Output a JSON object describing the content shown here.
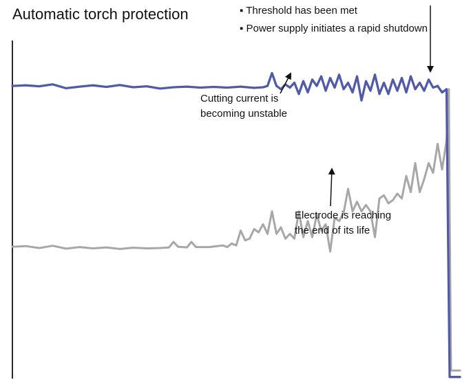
{
  "title": "Automatic torch protection",
  "threshold_notes": [
    "▪ Threshold has been met",
    "▪ Power supply initiates a rapid shutdown"
  ],
  "annotations": {
    "cutting_current": [
      "Cutting current is",
      "becoming unstable"
    ],
    "electrode": [
      "Electrode is reaching",
      "the end of its life"
    ]
  },
  "colors": {
    "cutting_current": "#4f5aa8",
    "electrode_signal": "#a7a7a7",
    "axis": "#111111"
  },
  "chart_data": {
    "type": "line",
    "title": "Automatic torch protection",
    "xlabel": "",
    "ylabel": "",
    "x_range": [
      0,
      100
    ],
    "y_range": [
      0,
      100
    ],
    "grid": false,
    "legend": "none",
    "series": [
      {
        "id": "cutting_current",
        "color": "#4f5aa8",
        "points": [
          [
            0,
            91.0
          ],
          [
            3,
            91.2
          ],
          [
            6,
            90.9
          ],
          [
            9,
            91.5
          ],
          [
            12,
            90.3
          ],
          [
            15,
            90.8
          ],
          [
            18,
            91.2
          ],
          [
            21,
            90.7
          ],
          [
            24,
            91.3
          ],
          [
            27,
            90.6
          ],
          [
            30,
            90.9
          ],
          [
            33,
            90.2
          ],
          [
            36,
            90.6
          ],
          [
            39,
            90.8
          ],
          [
            42,
            90.5
          ],
          [
            45,
            90.7
          ],
          [
            48,
            90.5
          ],
          [
            51,
            90.8
          ],
          [
            54,
            90.4
          ],
          [
            56,
            90.6
          ],
          [
            57,
            91.0
          ],
          [
            58,
            95.0
          ],
          [
            59,
            91.0
          ],
          [
            60,
            90.0
          ],
          [
            61,
            91.5
          ],
          [
            62,
            90.5
          ],
          [
            63,
            92.0
          ],
          [
            64,
            88.5
          ],
          [
            65,
            92.5
          ],
          [
            66,
            89.0
          ],
          [
            67,
            93.0
          ],
          [
            68,
            91.0
          ],
          [
            69,
            94.0
          ],
          [
            70,
            89.5
          ],
          [
            71,
            93.5
          ],
          [
            72,
            90.5
          ],
          [
            73,
            94.5
          ],
          [
            74,
            90.0
          ],
          [
            75,
            92.0
          ],
          [
            76,
            89.0
          ],
          [
            77,
            94.0
          ],
          [
            78,
            86.5
          ],
          [
            79,
            92.5
          ],
          [
            80,
            89.5
          ],
          [
            81,
            94.5
          ],
          [
            82,
            88.5
          ],
          [
            83,
            92.0
          ],
          [
            84,
            88.5
          ],
          [
            85,
            93.0
          ],
          [
            86,
            89.5
          ],
          [
            87,
            93.5
          ],
          [
            88,
            89.0
          ],
          [
            89,
            94.0
          ],
          [
            90,
            90.0
          ],
          [
            91,
            92.0
          ],
          [
            92,
            89.5
          ],
          [
            93,
            93.0
          ],
          [
            94,
            90.5
          ],
          [
            95,
            91.0
          ],
          [
            96,
            89.0
          ],
          [
            97,
            90.0
          ],
          [
            97.3,
            50.0
          ],
          [
            97.7,
            0.5
          ],
          [
            100,
            0.5
          ]
        ]
      },
      {
        "id": "electrode_signal",
        "color": "#a7a7a7",
        "points": [
          [
            0,
            41.0
          ],
          [
            3,
            41.2
          ],
          [
            6,
            40.6
          ],
          [
            9,
            41.3
          ],
          [
            12,
            40.4
          ],
          [
            15,
            40.9
          ],
          [
            18,
            40.5
          ],
          [
            21,
            40.8
          ],
          [
            24,
            40.3
          ],
          [
            27,
            40.7
          ],
          [
            30,
            40.5
          ],
          [
            33,
            40.6
          ],
          [
            35,
            40.8
          ],
          [
            36,
            42.5
          ],
          [
            37,
            41.0
          ],
          [
            39,
            40.8
          ],
          [
            40,
            42.5
          ],
          [
            41,
            40.9
          ],
          [
            44,
            40.9
          ],
          [
            47,
            41.4
          ],
          [
            48,
            40.9
          ],
          [
            49,
            42.0
          ],
          [
            50,
            41.4
          ],
          [
            51,
            46.0
          ],
          [
            52,
            43.0
          ],
          [
            53,
            43.5
          ],
          [
            54,
            46.5
          ],
          [
            55,
            45.5
          ],
          [
            56,
            48.0
          ],
          [
            57,
            45.0
          ],
          [
            58,
            52.0
          ],
          [
            59,
            45.0
          ],
          [
            60,
            47.0
          ],
          [
            61,
            43.5
          ],
          [
            62,
            45.0
          ],
          [
            63,
            43.5
          ],
          [
            64,
            52.0
          ],
          [
            65,
            44.0
          ],
          [
            66,
            49.0
          ],
          [
            67,
            44.0
          ],
          [
            68,
            51.0
          ],
          [
            69,
            46.0
          ],
          [
            70,
            48.0
          ],
          [
            71,
            39.5
          ],
          [
            72,
            50.0
          ],
          [
            73,
            49.0
          ],
          [
            74,
            51.5
          ],
          [
            75,
            59.0
          ],
          [
            76,
            52.0
          ],
          [
            77,
            55.0
          ],
          [
            78,
            52.0
          ],
          [
            79,
            54.0
          ],
          [
            80,
            52.0
          ],
          [
            81,
            44.0
          ],
          [
            82,
            56.0
          ],
          [
            83,
            57.0
          ],
          [
            84,
            54.5
          ],
          [
            85,
            55.5
          ],
          [
            86,
            57.5
          ],
          [
            87,
            56.0
          ],
          [
            88,
            63.0
          ],
          [
            89,
            58.0
          ],
          [
            90,
            67.0
          ],
          [
            91,
            58.0
          ],
          [
            92,
            62.0
          ],
          [
            93,
            67.0
          ],
          [
            94,
            64.0
          ],
          [
            95,
            73.0
          ],
          [
            96,
            65.0
          ],
          [
            97,
            74.0
          ],
          [
            97.5,
            90.0
          ],
          [
            97.7,
            50.0
          ],
          [
            98,
            2.5
          ],
          [
            100,
            2.5
          ]
        ]
      }
    ],
    "annotations": [
      {
        "id": "cutting_current_note",
        "text": [
          "Cutting current is",
          "becoming unstable"
        ],
        "points_to": [
          65.5,
          89.0
        ]
      },
      {
        "id": "electrode_note",
        "text": [
          "Electrode is reaching",
          "the end of its life"
        ],
        "points_to": [
          74.0,
          48.0
        ]
      },
      {
        "id": "threshold_note",
        "text": [
          "▪ Threshold has been met",
          "▪ Power supply initiates a rapid shutdown"
        ],
        "points_to": [
          100,
          86.0
        ]
      }
    ]
  }
}
